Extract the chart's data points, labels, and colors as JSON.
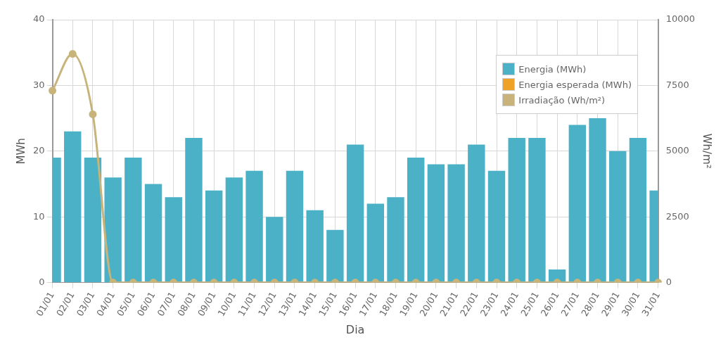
{
  "chart_data": {
    "type": "bar",
    "xlabel": "Dia",
    "ylabel": "MWh",
    "y2label": "Wh/m²",
    "categories": [
      "01/01",
      "02/01",
      "03/01",
      "04/01",
      "05/01",
      "06/01",
      "07/01",
      "08/01",
      "09/01",
      "10/01",
      "11/01",
      "12/01",
      "13/01",
      "14/01",
      "15/01",
      "16/01",
      "17/01",
      "18/01",
      "19/01",
      "20/01",
      "21/01",
      "22/01",
      "23/01",
      "24/01",
      "25/01",
      "26/01",
      "27/01",
      "28/01",
      "29/01",
      "30/01",
      "31/01"
    ],
    "series": [
      {
        "name": "Energia (MWh)",
        "color": "#4bb1c6",
        "values": [
          19,
          23,
          19,
          16,
          19,
          15,
          13,
          22,
          14,
          16,
          17,
          10,
          17,
          11,
          8,
          21,
          12,
          13,
          19,
          18,
          18,
          21,
          17,
          22,
          22,
          2,
          24,
          25,
          20,
          22,
          14
        ]
      },
      {
        "name": "Energia esperada (MWh)",
        "type": "line",
        "color": "#eea229",
        "values": [
          null,
          null,
          null,
          null,
          null,
          null,
          null,
          null,
          null,
          null,
          null,
          null,
          null,
          null,
          null,
          null,
          null,
          null,
          null,
          null,
          null,
          null,
          null,
          null,
          null,
          null,
          null,
          null,
          null,
          null,
          null
        ]
      },
      {
        "name": "Irradiação (Wh/m²)",
        "type": "line",
        "axis": "y2",
        "color": "#c8b47a",
        "values": [
          7300,
          8700,
          6400,
          0,
          0,
          0,
          0,
          0,
          0,
          0,
          0,
          0,
          0,
          0,
          0,
          0,
          0,
          0,
          0,
          0,
          0,
          0,
          0,
          0,
          0,
          0,
          0,
          0,
          0,
          0,
          0
        ]
      }
    ],
    "ylim": [
      0,
      40
    ],
    "yticks": [
      0,
      10,
      20,
      30,
      40
    ],
    "y2lim": [
      0,
      10000
    ],
    "y2ticks": [
      0,
      2500,
      5000,
      7500,
      10000
    ],
    "grid": true,
    "legend": "top right",
    "marker": "circle"
  }
}
